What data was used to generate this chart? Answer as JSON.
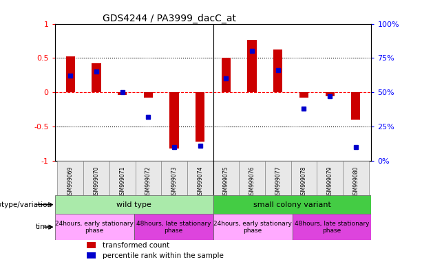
{
  "title": "GDS4244 / PA3999_dacC_at",
  "samples": [
    "GSM999069",
    "GSM999070",
    "GSM999071",
    "GSM999072",
    "GSM999073",
    "GSM999074",
    "GSM999075",
    "GSM999076",
    "GSM999077",
    "GSM999078",
    "GSM999079",
    "GSM999080"
  ],
  "bar_values": [
    0.52,
    0.42,
    -0.04,
    -0.08,
    -0.82,
    -0.72,
    0.5,
    0.77,
    0.62,
    -0.08,
    -0.06,
    -0.4
  ],
  "dot_values_pct": [
    62,
    65,
    50,
    32,
    10,
    11,
    60,
    80,
    66,
    38,
    47,
    10
  ],
  "bar_color": "#cc0000",
  "dot_color": "#0000cc",
  "ylim_left": [
    -1.0,
    1.0
  ],
  "ylim_right": [
    0,
    100
  ],
  "yticks_left": [
    -1.0,
    -0.5,
    0.0,
    0.5,
    1.0
  ],
  "ytick_labels_left": [
    "-1",
    "-0.5",
    "0",
    "0.5",
    "1"
  ],
  "yticks_right": [
    0,
    25,
    50,
    75,
    100
  ],
  "ytick_labels_right": [
    "0%",
    "25%",
    "50%",
    "75%",
    "100%"
  ],
  "genotype_groups": [
    {
      "label": "wild type",
      "start": 0,
      "end": 6,
      "color": "#aaeaaa"
    },
    {
      "label": "small colony variant",
      "start": 6,
      "end": 12,
      "color": "#44cc44"
    }
  ],
  "time_groups": [
    {
      "label": "24hours, early stationary\nphase",
      "start": 0,
      "end": 3,
      "color": "#ffaaff"
    },
    {
      "label": "48hours, late stationary\nphase",
      "start": 3,
      "end": 6,
      "color": "#dd44dd"
    },
    {
      "label": "24hours, early stationary\nphase",
      "start": 6,
      "end": 9,
      "color": "#ffaaff"
    },
    {
      "label": "48hours, late stationary\nphase",
      "start": 9,
      "end": 12,
      "color": "#dd44dd"
    }
  ],
  "legend_items": [
    {
      "label": "transformed count",
      "color": "#cc0000"
    },
    {
      "label": "percentile rank within the sample",
      "color": "#0000cc"
    }
  ],
  "genotype_label": "genotype/variation",
  "time_label": "time",
  "n_samples": 12,
  "bar_width": 0.35
}
